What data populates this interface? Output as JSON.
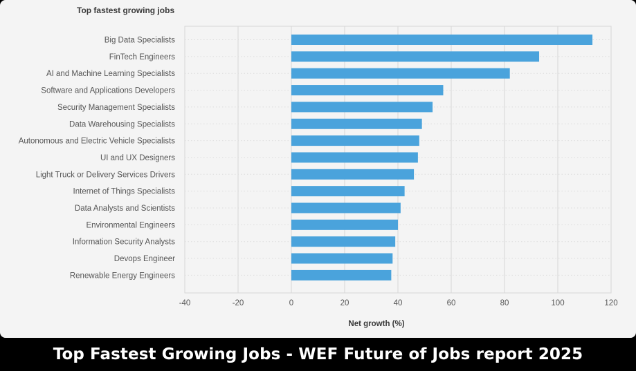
{
  "chart_data": {
    "type": "bar",
    "orientation": "horizontal",
    "title": "Top fastest growing jobs",
    "xlabel": "Net growth (%)",
    "ylabel": "",
    "xlim": [
      -40,
      120
    ],
    "xticks": [
      "-40",
      "-20",
      "0",
      "20",
      "40",
      "60",
      "80",
      "100",
      "120"
    ],
    "grid": true,
    "color": "#4aa3dc",
    "categories": [
      "Big Data Specialists",
      "FinTech Engineers",
      "AI and Machine Learning Specialists",
      "Software and Applications Developers",
      "Security Management Specialists",
      "Data Warehousing Specialists",
      "Autonomous and Electric Vehicle Specialists",
      "UI and UX Designers",
      "Light Truck or Delivery Services Drivers",
      "Internet of Things Specialists",
      "Data Analysts and Scientists",
      "Environmental Engineers",
      "Information Security Analysts",
      "Devops Engineer",
      "Renewable Energy Engineers"
    ],
    "values": [
      113,
      93,
      82,
      57,
      53,
      49,
      48,
      47.5,
      46,
      42.5,
      41,
      40,
      39,
      38,
      37.5
    ]
  },
  "caption": "Top Fastest Growing Jobs - WEF Future of Jobs report 2025"
}
